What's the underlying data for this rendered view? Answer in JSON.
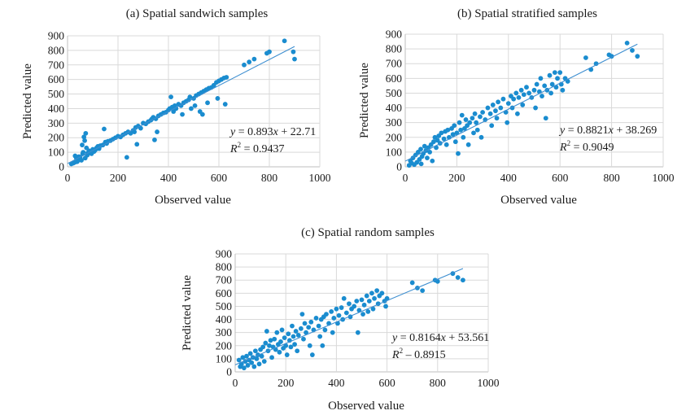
{
  "chart_data": [
    {
      "type": "scatter",
      "title": "(a) Spatial sandwich samples",
      "xlabel": "Observed value",
      "ylabel": "Predicted value",
      "xlim": [
        0,
        1000
      ],
      "ylim": [
        0,
        900
      ],
      "xticks": [
        0,
        200,
        400,
        600,
        800,
        1000
      ],
      "yticks": [
        0,
        100,
        200,
        300,
        400,
        500,
        600,
        700,
        800,
        900
      ],
      "grid": true,
      "color": "#1a8ccf",
      "fit": {
        "slope": 0.893,
        "intercept": 22.71,
        "x_range": [
          0,
          900
        ]
      },
      "equation_var_y": "y",
      "equation_rest": "= 0.893",
      "equation_var_x": "x",
      "equation_tail": "+ 22.71",
      "r2_label": "R",
      "r2_value": "= 0.9437",
      "points": [
        [
          15,
          20
        ],
        [
          22,
          25
        ],
        [
          28,
          30
        ],
        [
          30,
          75
        ],
        [
          35,
          60
        ],
        [
          38,
          35
        ],
        [
          40,
          40
        ],
        [
          45,
          70
        ],
        [
          48,
          55
        ],
        [
          50,
          65
        ],
        [
          55,
          45
        ],
        [
          58,
          150
        ],
        [
          60,
          90
        ],
        [
          62,
          100
        ],
        [
          65,
          205
        ],
        [
          68,
          180
        ],
        [
          70,
          60
        ],
        [
          72,
          230
        ],
        [
          75,
          130
        ],
        [
          78,
          80
        ],
        [
          80,
          95
        ],
        [
          85,
          110
        ],
        [
          90,
          100
        ],
        [
          95,
          90
        ],
        [
          100,
          120
        ],
        [
          105,
          105
        ],
        [
          110,
          115
        ],
        [
          115,
          130
        ],
        [
          120,
          140
        ],
        [
          125,
          125
        ],
        [
          130,
          145
        ],
        [
          140,
          150
        ],
        [
          145,
          260
        ],
        [
          150,
          170
        ],
        [
          155,
          160
        ],
        [
          160,
          175
        ],
        [
          170,
          180
        ],
        [
          180,
          190
        ],
        [
          190,
          200
        ],
        [
          200,
          210
        ],
        [
          210,
          205
        ],
        [
          220,
          220
        ],
        [
          230,
          230
        ],
        [
          235,
          65
        ],
        [
          240,
          240
        ],
        [
          250,
          230
        ],
        [
          260,
          250
        ],
        [
          265,
          240
        ],
        [
          270,
          270
        ],
        [
          275,
          155
        ],
        [
          280,
          280
        ],
        [
          290,
          265
        ],
        [
          300,
          300
        ],
        [
          310,
          295
        ],
        [
          320,
          310
        ],
        [
          330,
          320
        ],
        [
          335,
          330
        ],
        [
          340,
          340
        ],
        [
          345,
          185
        ],
        [
          350,
          330
        ],
        [
          355,
          240
        ],
        [
          360,
          350
        ],
        [
          370,
          360
        ],
        [
          380,
          370
        ],
        [
          390,
          375
        ],
        [
          400,
          390
        ],
        [
          405,
          400
        ],
        [
          410,
          480
        ],
        [
          415,
          410
        ],
        [
          420,
          380
        ],
        [
          425,
          420
        ],
        [
          430,
          400
        ],
        [
          440,
          430
        ],
        [
          450,
          420
        ],
        [
          455,
          360
        ],
        [
          460,
          440
        ],
        [
          470,
          450
        ],
        [
          480,
          460
        ],
        [
          485,
          480
        ],
        [
          490,
          400
        ],
        [
          500,
          470
        ],
        [
          505,
          420
        ],
        [
          510,
          490
        ],
        [
          520,
          500
        ],
        [
          525,
          380
        ],
        [
          530,
          510
        ],
        [
          535,
          360
        ],
        [
          540,
          520
        ],
        [
          550,
          530
        ],
        [
          555,
          440
        ],
        [
          560,
          540
        ],
        [
          570,
          545
        ],
        [
          580,
          560
        ],
        [
          590,
          580
        ],
        [
          595,
          470
        ],
        [
          600,
          590
        ],
        [
          610,
          600
        ],
        [
          620,
          610
        ],
        [
          625,
          430
        ],
        [
          630,
          615
        ],
        [
          700,
          700
        ],
        [
          720,
          720
        ],
        [
          740,
          740
        ],
        [
          790,
          780
        ],
        [
          800,
          790
        ],
        [
          860,
          865
        ],
        [
          895,
          790
        ],
        [
          900,
          740
        ]
      ]
    },
    {
      "type": "scatter",
      "title": "(b)  Spatial stratified samples",
      "xlabel": "Observed value",
      "ylabel": "Predicted value",
      "xlim": [
        0,
        1000
      ],
      "ylim": [
        0,
        900
      ],
      "xticks": [
        0,
        200,
        400,
        600,
        800,
        1000
      ],
      "yticks": [
        0,
        100,
        200,
        300,
        400,
        500,
        600,
        700,
        800,
        900
      ],
      "grid": true,
      "color": "#1a8ccf",
      "fit": {
        "slope": 0.8821,
        "intercept": 38.269,
        "x_range": [
          0,
          900
        ]
      },
      "equation_var_y": "y",
      "equation_rest": "= 0.8821",
      "equation_var_x": "x",
      "equation_tail": "+ 38.269",
      "r2_label": "R",
      "r2_value": "= 0.9049",
      "points": [
        [
          15,
          10
        ],
        [
          20,
          40
        ],
        [
          25,
          25
        ],
        [
          30,
          60
        ],
        [
          35,
          15
        ],
        [
          40,
          80
        ],
        [
          45,
          30
        ],
        [
          50,
          100
        ],
        [
          55,
          50
        ],
        [
          60,
          120
        ],
        [
          62,
          20
        ],
        [
          65,
          70
        ],
        [
          70,
          90
        ],
        [
          75,
          140
        ],
        [
          80,
          110
        ],
        [
          85,
          60
        ],
        [
          90,
          130
        ],
        [
          95,
          100
        ],
        [
          100,
          150
        ],
        [
          105,
          40
        ],
        [
          110,
          170
        ],
        [
          115,
          200
        ],
        [
          120,
          130
        ],
        [
          125,
          180
        ],
        [
          130,
          210
        ],
        [
          135,
          160
        ],
        [
          140,
          230
        ],
        [
          150,
          190
        ],
        [
          155,
          240
        ],
        [
          160,
          150
        ],
        [
          165,
          250
        ],
        [
          170,
          200
        ],
        [
          180,
          260
        ],
        [
          185,
          220
        ],
        [
          190,
          280
        ],
        [
          195,
          170
        ],
        [
          200,
          230
        ],
        [
          205,
          90
        ],
        [
          210,
          300
        ],
        [
          215,
          250
        ],
        [
          220,
          350
        ],
        [
          225,
          200
        ],
        [
          230,
          260
        ],
        [
          235,
          320
        ],
        [
          240,
          280
        ],
        [
          245,
          150
        ],
        [
          250,
          300
        ],
        [
          260,
          330
        ],
        [
          265,
          230
        ],
        [
          270,
          360
        ],
        [
          275,
          300
        ],
        [
          280,
          250
        ],
        [
          290,
          340
        ],
        [
          295,
          200
        ],
        [
          300,
          370
        ],
        [
          310,
          320
        ],
        [
          320,
          400
        ],
        [
          330,
          360
        ],
        [
          335,
          280
        ],
        [
          340,
          420
        ],
        [
          350,
          380
        ],
        [
          355,
          330
        ],
        [
          360,
          440
        ],
        [
          370,
          400
        ],
        [
          380,
          460
        ],
        [
          390,
          370
        ],
        [
          395,
          300
        ],
        [
          400,
          430
        ],
        [
          410,
          480
        ],
        [
          415,
          400
        ],
        [
          420,
          460
        ],
        [
          430,
          500
        ],
        [
          435,
          360
        ],
        [
          440,
          470
        ],
        [
          450,
          520
        ],
        [
          455,
          420
        ],
        [
          460,
          490
        ],
        [
          470,
          540
        ],
        [
          480,
          500
        ],
        [
          490,
          470
        ],
        [
          500,
          520
        ],
        [
          505,
          400
        ],
        [
          510,
          560
        ],
        [
          520,
          510
        ],
        [
          525,
          600
        ],
        [
          530,
          480
        ],
        [
          540,
          550
        ],
        [
          545,
          330
        ],
        [
          550,
          520
        ],
        [
          560,
          620
        ],
        [
          565,
          500
        ],
        [
          570,
          560
        ],
        [
          580,
          640
        ],
        [
          585,
          540
        ],
        [
          590,
          600
        ],
        [
          600,
          640
        ],
        [
          605,
          560
        ],
        [
          610,
          520
        ],
        [
          620,
          600
        ],
        [
          630,
          580
        ],
        [
          700,
          740
        ],
        [
          720,
          660
        ],
        [
          740,
          700
        ],
        [
          790,
          760
        ],
        [
          800,
          750
        ],
        [
          860,
          840
        ],
        [
          880,
          790
        ],
        [
          900,
          750
        ]
      ]
    },
    {
      "type": "scatter",
      "title": "(c) Spatial random samples",
      "xlabel": "Observed value",
      "ylabel": "Predicted value",
      "xlim": [
        0,
        1000
      ],
      "ylim": [
        0,
        900
      ],
      "xticks": [
        0,
        200,
        400,
        600,
        800,
        1000
      ],
      "yticks": [
        0,
        100,
        200,
        300,
        400,
        500,
        600,
        700,
        800,
        900
      ],
      "grid": true,
      "color": "#1a8ccf",
      "fit": {
        "slope": 0.8164,
        "intercept": 53.561,
        "x_range": [
          0,
          900
        ]
      },
      "equation_var_y": "y",
      "equation_rest": "= 0.8164",
      "equation_var_x": "x",
      "equation_tail": "+ 53.561",
      "r2_label": "R",
      "r2_value": "– 0.8915",
      "points": [
        [
          15,
          90
        ],
        [
          20,
          40
        ],
        [
          25,
          60
        ],
        [
          30,
          110
        ],
        [
          35,
          30
        ],
        [
          40,
          80
        ],
        [
          45,
          120
        ],
        [
          50,
          50
        ],
        [
          55,
          90
        ],
        [
          60,
          140
        ],
        [
          65,
          70
        ],
        [
          70,
          110
        ],
        [
          75,
          40
        ],
        [
          80,
          160
        ],
        [
          85,
          100
        ],
        [
          90,
          130
        ],
        [
          95,
          60
        ],
        [
          100,
          170
        ],
        [
          105,
          120
        ],
        [
          110,
          190
        ],
        [
          115,
          80
        ],
        [
          120,
          220
        ],
        [
          125,
          310
        ],
        [
          130,
          160
        ],
        [
          135,
          200
        ],
        [
          140,
          240
        ],
        [
          145,
          110
        ],
        [
          150,
          190
        ],
        [
          155,
          250
        ],
        [
          160,
          170
        ],
        [
          165,
          300
        ],
        [
          170,
          210
        ],
        [
          175,
          150
        ],
        [
          180,
          230
        ],
        [
          185,
          320
        ],
        [
          190,
          180
        ],
        [
          195,
          260
        ],
        [
          200,
          200
        ],
        [
          205,
          130
        ],
        [
          210,
          290
        ],
        [
          215,
          240
        ],
        [
          220,
          190
        ],
        [
          225,
          350
        ],
        [
          230,
          270
        ],
        [
          235,
          210
        ],
        [
          240,
          310
        ],
        [
          245,
          160
        ],
        [
          250,
          280
        ],
        [
          260,
          330
        ],
        [
          265,
          440
        ],
        [
          270,
          250
        ],
        [
          275,
          370
        ],
        [
          280,
          300
        ],
        [
          290,
          340
        ],
        [
          295,
          200
        ],
        [
          300,
          380
        ],
        [
          305,
          130
        ],
        [
          310,
          320
        ],
        [
          320,
          410
        ],
        [
          330,
          350
        ],
        [
          335,
          270
        ],
        [
          340,
          400
        ],
        [
          345,
          200
        ],
        [
          350,
          420
        ],
        [
          355,
          320
        ],
        [
          360,
          440
        ],
        [
          370,
          370
        ],
        [
          380,
          460
        ],
        [
          385,
          300
        ],
        [
          390,
          410
        ],
        [
          400,
          480
        ],
        [
          405,
          370
        ],
        [
          410,
          430
        ],
        [
          420,
          490
        ],
        [
          425,
          400
        ],
        [
          430,
          560
        ],
        [
          440,
          450
        ],
        [
          450,
          520
        ],
        [
          455,
          420
        ],
        [
          460,
          480
        ],
        [
          470,
          500
        ],
        [
          480,
          540
        ],
        [
          485,
          300
        ],
        [
          490,
          470
        ],
        [
          500,
          550
        ],
        [
          505,
          440
        ],
        [
          510,
          510
        ],
        [
          520,
          580
        ],
        [
          525,
          460
        ],
        [
          530,
          540
        ],
        [
          540,
          600
        ],
        [
          545,
          480
        ],
        [
          550,
          560
        ],
        [
          560,
          620
        ],
        [
          565,
          520
        ],
        [
          570,
          580
        ],
        [
          580,
          600
        ],
        [
          590,
          540
        ],
        [
          595,
          500
        ],
        [
          600,
          560
        ],
        [
          700,
          680
        ],
        [
          720,
          640
        ],
        [
          740,
          620
        ],
        [
          790,
          700
        ],
        [
          800,
          690
        ],
        [
          860,
          750
        ],
        [
          880,
          720
        ],
        [
          900,
          700
        ]
      ]
    }
  ]
}
